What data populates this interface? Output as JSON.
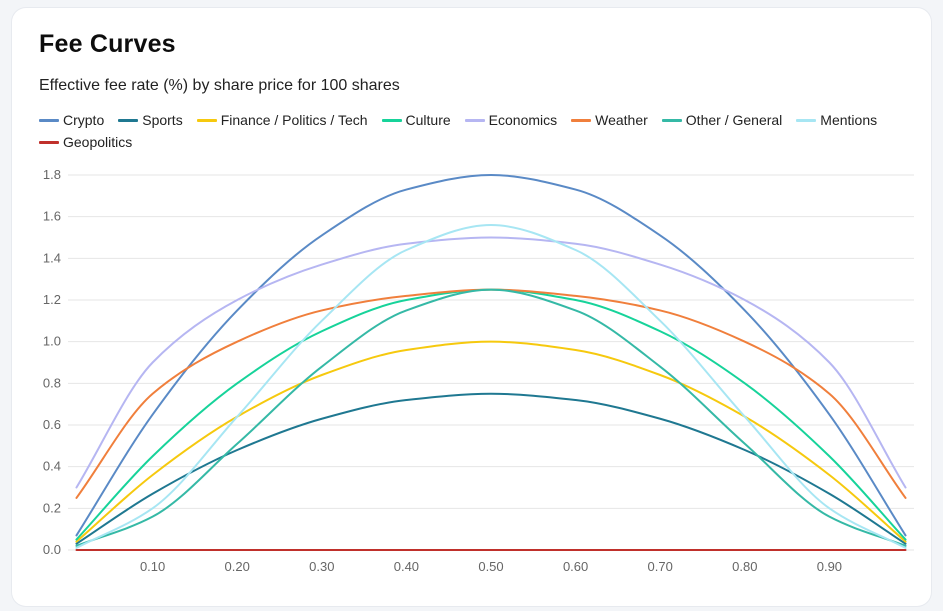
{
  "header": {
    "title": "Fee Curves",
    "subtitle": "Effective fee rate (%) by share price for 100 shares"
  },
  "chart_data": {
    "type": "line",
    "title": "Fee Curves",
    "subtitle": "Effective fee rate (%) by share price for 100 shares",
    "xlabel": "",
    "ylabel": "",
    "xlim": [
      0,
      1
    ],
    "ylim": [
      0,
      1.8
    ],
    "x_ticks": [
      "0.10",
      "0.20",
      "0.30",
      "0.40",
      "0.50",
      "0.60",
      "0.70",
      "0.80",
      "0.90"
    ],
    "y_ticks": [
      "0.0",
      "0.2",
      "0.4",
      "0.6",
      "0.8",
      "1.0",
      "1.2",
      "1.4",
      "1.6",
      "1.8"
    ],
    "grid": "horizontal",
    "legend_position": "top-left",
    "x": [
      0.01,
      0.1,
      0.2,
      0.3,
      0.4,
      0.5,
      0.6,
      0.7,
      0.8,
      0.9,
      0.99
    ],
    "series": [
      {
        "name": "Crypto",
        "color": "#5a8ac6",
        "values": [
          0.07,
          0.65,
          1.15,
          1.51,
          1.73,
          1.8,
          1.73,
          1.51,
          1.15,
          0.65,
          0.07
        ]
      },
      {
        "name": "Sports",
        "color": "#1f7891",
        "values": [
          0.03,
          0.27,
          0.48,
          0.63,
          0.72,
          0.75,
          0.72,
          0.63,
          0.48,
          0.27,
          0.03
        ]
      },
      {
        "name": "Finance / Politics / Tech",
        "color": "#f6c90e",
        "values": [
          0.04,
          0.36,
          0.64,
          0.84,
          0.96,
          1.0,
          0.96,
          0.84,
          0.64,
          0.36,
          0.04
        ]
      },
      {
        "name": "Culture",
        "color": "#17d39a",
        "values": [
          0.05,
          0.45,
          0.8,
          1.05,
          1.2,
          1.25,
          1.2,
          1.05,
          0.8,
          0.45,
          0.05
        ]
      },
      {
        "name": "Economics",
        "color": "#b6b6f2",
        "values": [
          0.3,
          0.9,
          1.2,
          1.37,
          1.47,
          1.5,
          1.47,
          1.37,
          1.2,
          0.9,
          0.3
        ]
      },
      {
        "name": "Weather",
        "color": "#f07f3c",
        "values": [
          0.25,
          0.75,
          1.0,
          1.15,
          1.22,
          1.25,
          1.22,
          1.15,
          1.0,
          0.75,
          0.25
        ]
      },
      {
        "name": "Other / General",
        "color": "#35b9a6",
        "values": [
          0.02,
          0.16,
          0.51,
          0.88,
          1.15,
          1.25,
          1.15,
          0.88,
          0.51,
          0.16,
          0.02
        ]
      },
      {
        "name": "Mentions",
        "color": "#a7e6f3",
        "values": [
          0.01,
          0.2,
          0.64,
          1.1,
          1.44,
          1.56,
          1.44,
          1.1,
          0.64,
          0.2,
          0.01
        ]
      },
      {
        "name": "Geopolitics",
        "color": "#c0302b",
        "values": [
          0.0,
          0.0,
          0.0,
          0.0,
          0.0,
          0.0,
          0.0,
          0.0,
          0.0,
          0.0,
          0.0
        ]
      }
    ]
  }
}
